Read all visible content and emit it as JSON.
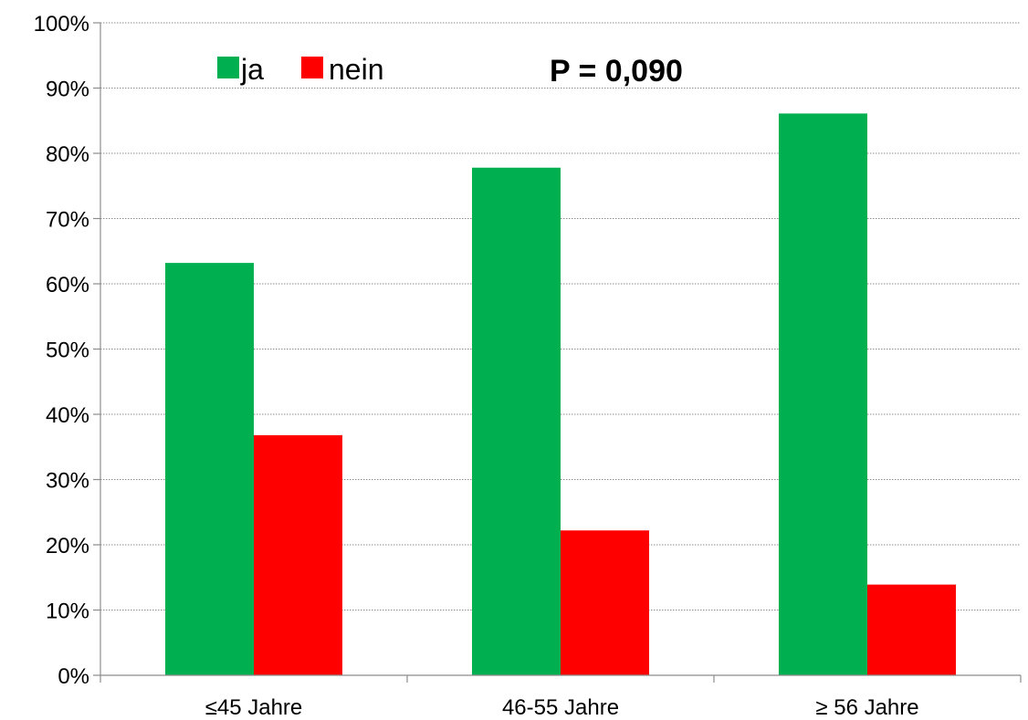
{
  "chart_data": {
    "type": "bar",
    "categories": [
      "≤45 Jahre",
      "46-55 Jahre",
      "≥ 56 Jahre"
    ],
    "series": [
      {
        "name": "ja",
        "values": [
          63.2,
          77.8,
          86.1
        ],
        "color": "#00b050"
      },
      {
        "name": "nein",
        "values": [
          36.8,
          22.2,
          13.9
        ],
        "color": "#ff0000"
      }
    ],
    "ylim": [
      0,
      100
    ],
    "yticks": [
      0,
      10,
      20,
      30,
      40,
      50,
      60,
      70,
      80,
      90,
      100
    ],
    "ytick_suffix": "%",
    "grid": true,
    "legend_position": "top-left",
    "annotation": "P = 0,090"
  }
}
